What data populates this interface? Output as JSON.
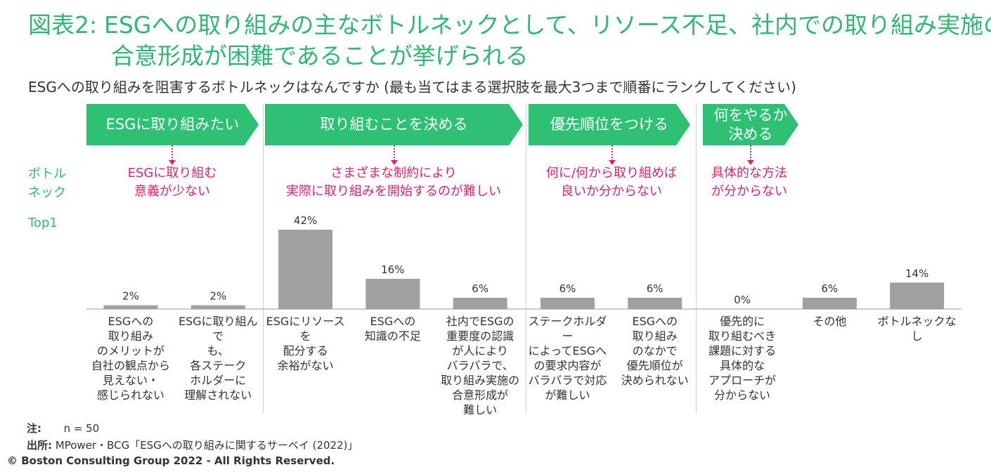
{
  "title": {
    "number": "図表2:",
    "line1": "ESGへの取り組みの主なボトルネックとして、リソース不足、社内での取り組み実施の",
    "line2": "合意形成が困難であることが挙げられる"
  },
  "subtitle": "ESGへの取り組みを阻害するボトルネックはなんですか (最も当てはまる選択肢を最大3つまで順番にランクしてください)",
  "stages": [
    {
      "label": "ESGに取り組みたい",
      "bottleneck": "ESGに取り組む\n意義が少ない"
    },
    {
      "label": "取り組むことを決める",
      "bottleneck": "さまざまな制約により\n実際に取り組みを開始するのが難しい"
    },
    {
      "label": "優先順位をつける",
      "bottleneck": "何に/何から取り組めば\n良いか分からない"
    },
    {
      "label": "何をやるか\n決める",
      "bottleneck": "具体的な方法\nが分からない"
    }
  ],
  "row_labels": {
    "bottleneck": "ボトル\nネック",
    "top1": "Top1"
  },
  "chart_data": {
    "type": "bar",
    "title": "Top1",
    "ylabel": "",
    "xlabel": "",
    "ylim": [
      0,
      42
    ],
    "categories": [
      "ESGへの\n取り組み\nのメリットが\n自社の観点から\n見えない・\n感じられない",
      "ESGに取り組んで\nも、\n各ステーク\nホルダーに\n理解されない",
      "ESGにリソースを\n配分する\n余裕がない",
      "ESGへの\n知識の不足",
      "社内でESGの\n重要度の認識\nが人により\nバラバラで、\n取り組み実施の\n合意形成が\n難しい",
      "ステークホルダー\nによってESGへ\nの要求内容が\nバラバラで対応\nが難しい",
      "ESGへの\n取り組み\nのなかで\n優先順位が\n決められない",
      "優先的に\n取り組むべき\n課題に対する\n具体的な\nアプローチが\n分からない",
      "その他",
      "ボトルネックなし"
    ],
    "values": [
      2,
      2,
      42,
      16,
      6,
      6,
      6,
      0,
      6,
      14
    ],
    "data_labels": [
      "2%",
      "2%",
      "42%",
      "16%",
      "6%",
      "6%",
      "6%",
      "0%",
      "6%",
      "14%"
    ],
    "bar_color": "#a0a0a0"
  },
  "notes": {
    "note_label": "注:",
    "note_text": "n = 50",
    "source_label": "出所:",
    "source_text": "MPower・BCG「ESGへの取り組みに関するサーベイ (2022)」"
  },
  "copyright": "© Boston Consulting Group 2022 - All Rights Reserved.",
  "colors": {
    "green": "#2ec073",
    "title_green": "#2eb872",
    "pink": "#e0226b",
    "bar": "#a0a0a0"
  }
}
